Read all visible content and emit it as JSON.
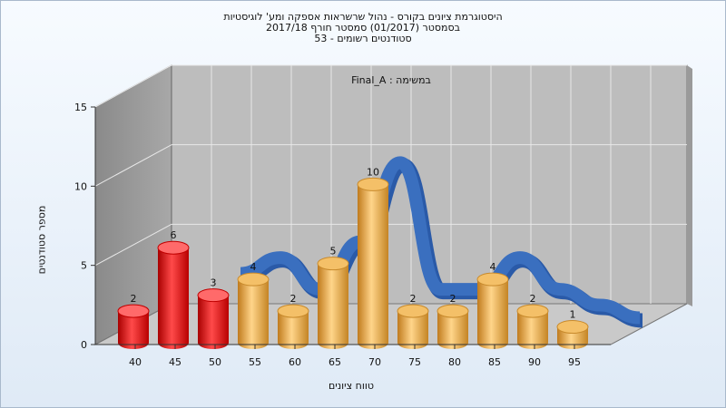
{
  "chart_data": {
    "type": "bar",
    "title_lines": [
      "היסטוגרמת ציונים בקורס - נהול שרשראות אספקה ומע' לוגיסטיות",
      "בסמסטר  (01/2017)  סמסטר חורף 2017/18",
      "סטודנטים רשומים - 53"
    ],
    "annotation": "במשימה : Final_A",
    "xlabel": "טווח ציונים",
    "ylabel": "מספר סטודנטים",
    "ylim": [
      0,
      15
    ],
    "yticks": [
      "0",
      "5",
      "10",
      "15"
    ],
    "xticks": [
      "40",
      "45",
      "50",
      "55",
      "60",
      "65",
      "70",
      "75",
      "80",
      "85",
      "90",
      "95"
    ],
    "values": [
      2,
      6,
      3,
      4,
      2,
      5,
      10,
      2,
      2,
      4,
      2,
      1
    ],
    "value_labels": [
      "2",
      "6",
      "3",
      "4",
      "2",
      "5",
      "10",
      "2",
      "2",
      "4",
      "2",
      "1"
    ],
    "bar_colors": [
      "red",
      "red",
      "red",
      "orange",
      "orange",
      "orange",
      "orange",
      "orange",
      "orange",
      "orange",
      "orange",
      "orange"
    ],
    "curve": "blue-ribbon",
    "colors": {
      "red": "#e02020",
      "orange": "#e8a540",
      "ribbon": "#3a6fbf"
    }
  }
}
